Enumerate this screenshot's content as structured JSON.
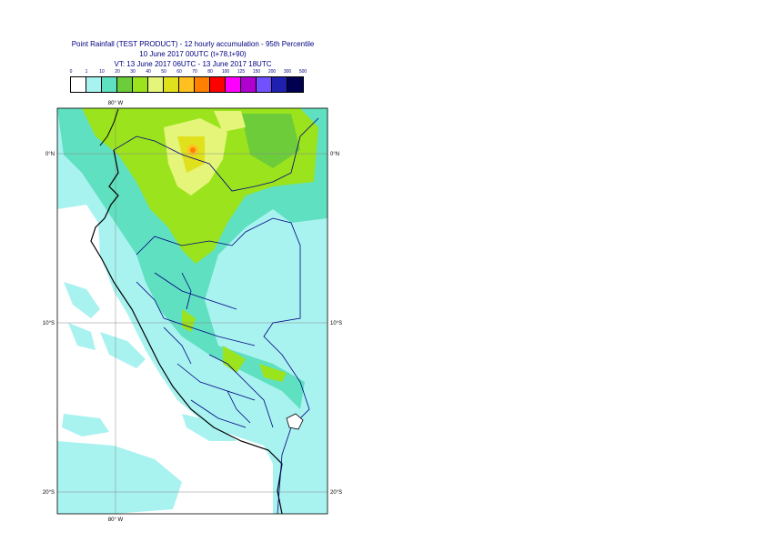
{
  "header": {
    "title_line1": "Point Rainfall (TEST PRODUCT) - 12 hourly accumulation - 95th Percentile",
    "title_line2": "10 June 2017 00UTC (t+78,t+90)",
    "title_line3": "VT: 13 June 2017 06UTC - 13 June 2017 18UTC"
  },
  "legend": {
    "labels": [
      "0",
      "1",
      "10",
      "20",
      "30",
      "40",
      "50",
      "60",
      "70",
      "80",
      "100",
      "125",
      "150",
      "200",
      "300",
      "500"
    ],
    "colors": [
      "#ffffff",
      "#a8f2f0",
      "#5fe0c0",
      "#6ccc3a",
      "#9be31c",
      "#e5f57a",
      "#e0e01c",
      "#ffc020",
      "#ff7f00",
      "#ff0000",
      "#ff00ff",
      "#b000d0",
      "#7050ff",
      "#2020b0",
      "#000050"
    ]
  },
  "map": {
    "lon_label_top": "80° W",
    "lon_label_bottom": "80° W",
    "lat_labels_left": [
      "0°N",
      "10°S",
      "20°S"
    ],
    "lat_labels_right": [
      "0°N",
      "10°S",
      "20°S"
    ]
  },
  "colors": {
    "ocean_rain": "#a8f2f0",
    "land_low": "#5fe0c0",
    "land_mid": "#9be31c",
    "land_high": "#e5f57a",
    "peak": "#ff7f00",
    "border": "#000080",
    "coast": "#000000"
  }
}
